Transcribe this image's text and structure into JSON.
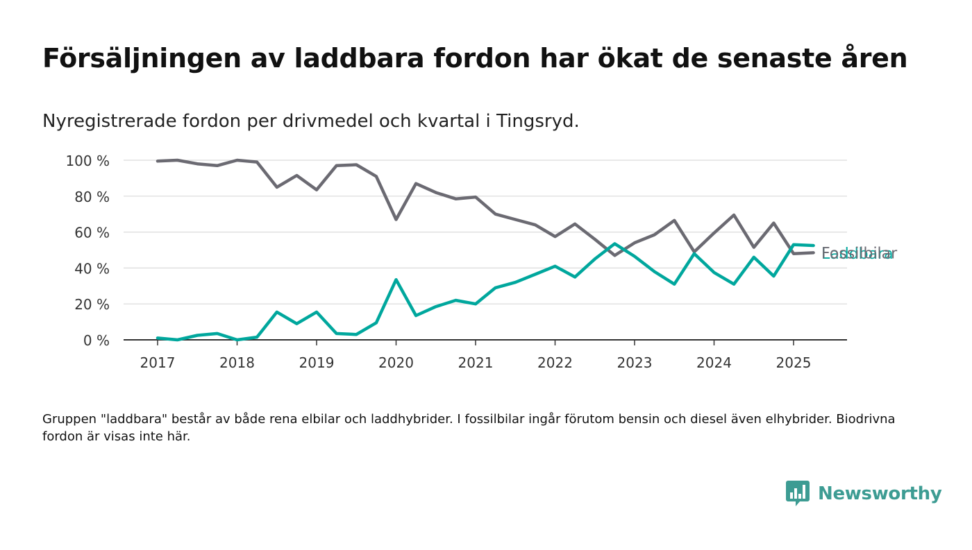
{
  "title": "Försäljningen av laddbara fordon har ökat de senaste åren",
  "subtitle": "Nyregistrerade fordon per drivmedel och kvartal i Tingsryd.",
  "note": "Gruppen \"laddbara\" består av både rena elbilar och laddhybrider. I fossilbilar ingår förutom bensin och diesel även elhybrider. Biodrivna fordon är visas inte här.",
  "brand": {
    "name": "Newsworthy",
    "icon": "newsworthy-logo-icon",
    "color": "#3d9c93"
  },
  "chart_data": {
    "type": "line",
    "x_type": "quarter",
    "ylim": [
      0,
      100
    ],
    "y_ticks": [
      0,
      20,
      40,
      60,
      80,
      100
    ],
    "y_tick_labels": [
      "0 %",
      "20 %",
      "40 %",
      "60 %",
      "80 %",
      "100 %"
    ],
    "x_ticks": [
      "2017",
      "2018",
      "2019",
      "2020",
      "2021",
      "2022",
      "2023",
      "2024",
      "2025"
    ],
    "grid": true,
    "legend": "direct labels at line ends",
    "x": [
      "2017 Q1",
      "2017 Q2",
      "2017 Q3",
      "2017 Q4",
      "2018 Q1",
      "2018 Q2",
      "2018 Q3",
      "2018 Q4",
      "2019 Q1",
      "2019 Q2",
      "2019 Q3",
      "2019 Q4",
      "2020 Q1",
      "2020 Q2",
      "2020 Q3",
      "2020 Q4",
      "2021 Q1",
      "2021 Q2",
      "2021 Q3",
      "2021 Q4",
      "2022 Q1",
      "2022 Q2",
      "2022 Q3",
      "2022 Q4",
      "2023 Q1",
      "2023 Q2",
      "2023 Q3",
      "2023 Q4",
      "2024 Q1",
      "2024 Q2",
      "2024 Q3",
      "2024 Q4",
      "2025 Q1",
      "2025 Q2"
    ],
    "series": [
      {
        "name": "Fossilbilar",
        "color": "#6b6a72",
        "values": [
          99.5,
          100,
          98,
          97,
          100,
          99,
          85,
          91.5,
          83.5,
          97,
          97.5,
          91,
          67,
          87,
          82,
          78.5,
          79.5,
          70,
          67,
          64,
          57.5,
          64.5,
          56,
          47,
          54,
          58.5,
          66.5,
          49,
          59.5,
          69.5,
          51.5,
          65,
          48,
          48.5
        ]
      },
      {
        "name": "Laddbara",
        "color": "#00a79d",
        "values": [
          1,
          0,
          2.5,
          3.5,
          0,
          1.5,
          15.5,
          9,
          15.5,
          3.5,
          3,
          9.5,
          33.5,
          13.5,
          18.5,
          22,
          20,
          29,
          32,
          36.5,
          41,
          35,
          45,
          53.5,
          46.5,
          38,
          31,
          48,
          37.5,
          31,
          46,
          35.5,
          53,
          52.5
        ]
      }
    ]
  }
}
